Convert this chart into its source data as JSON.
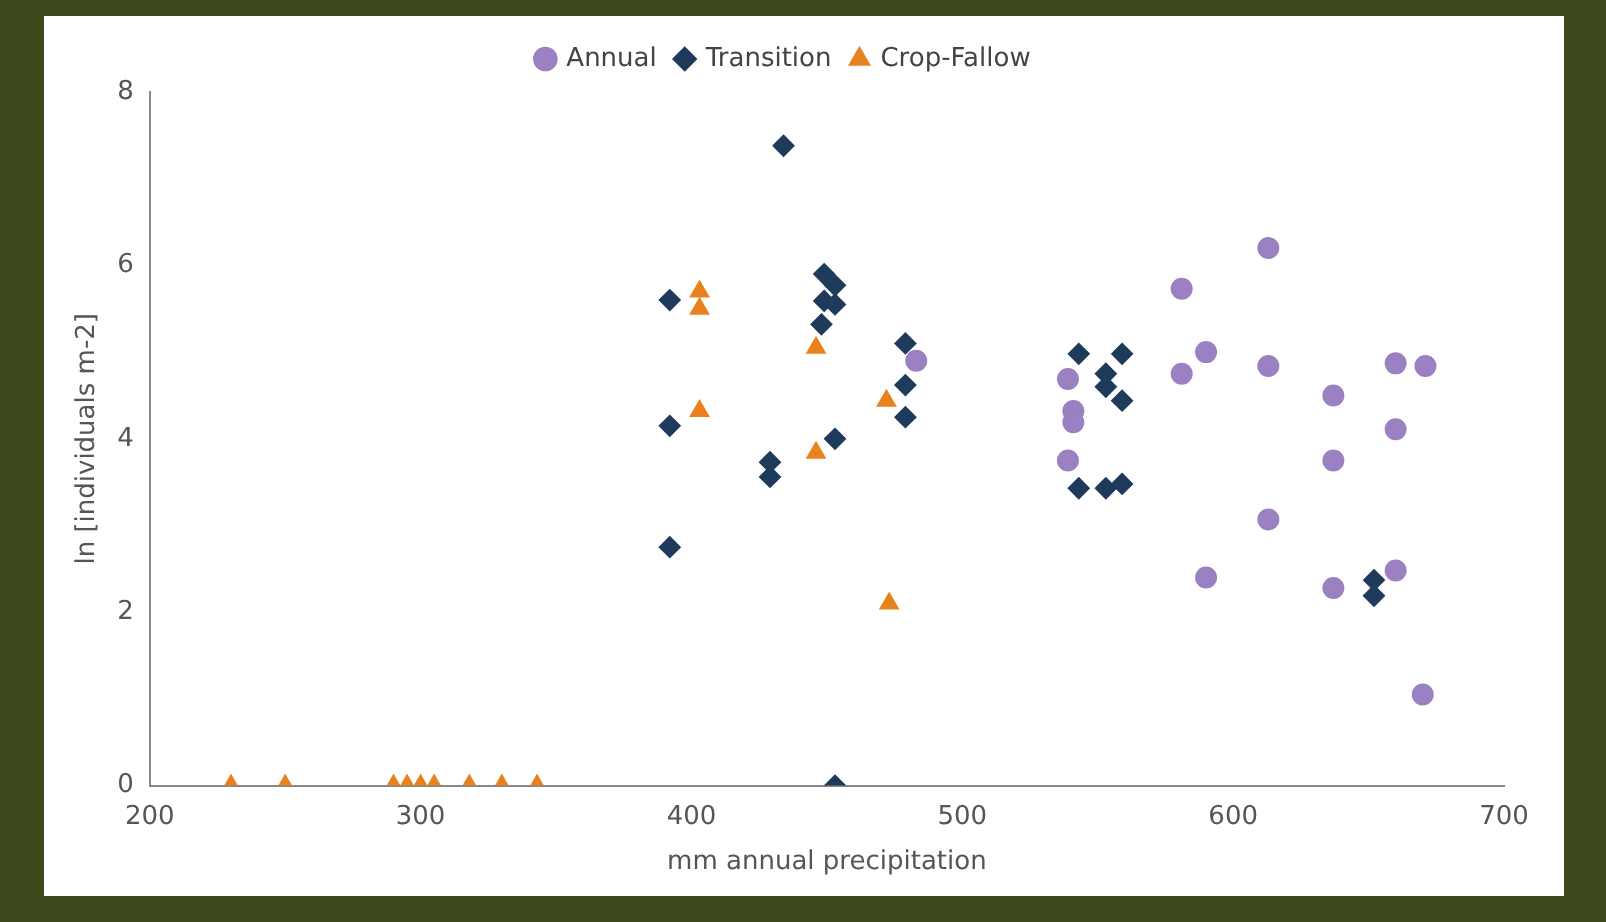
{
  "chart_data": {
    "type": "scatter",
    "xlabel": "mm annual precipitation",
    "ylabel": "ln [individuals m-2]",
    "xlim": [
      200,
      700
    ],
    "xticks": [
      200,
      300,
      400,
      500,
      600,
      700
    ],
    "ylim": [
      0,
      8
    ],
    "yticks": [
      0,
      2,
      4,
      6,
      8
    ],
    "grid": false,
    "legend": "top",
    "series": [
      {
        "name": "Annual",
        "color": "#9b80c2",
        "marker": "circle",
        "x": [
          483,
          613,
          581,
          590,
          581,
          613,
          660,
          671,
          637,
          660,
          637,
          613,
          590,
          637,
          660,
          670,
          539,
          541,
          541,
          539
        ],
        "values": [
          4.9,
          6.2,
          5.73,
          5.0,
          4.75,
          4.84,
          4.87,
          4.84,
          4.5,
          4.11,
          3.75,
          3.07,
          2.4,
          2.28,
          2.48,
          1.05,
          4.69,
          4.32,
          4.19,
          3.75
        ]
      },
      {
        "name": "Transition",
        "color": "#1f3b5c",
        "marker": "diamond",
        "x": [
          392,
          392,
          392,
          434,
          449,
          453,
          449,
          453,
          448,
          479,
          479,
          479,
          453,
          429,
          429,
          453,
          543,
          559,
          553,
          553,
          559,
          543,
          553,
          559,
          652,
          652
        ],
        "values": [
          5.6,
          4.15,
          2.75,
          7.38,
          5.9,
          5.77,
          5.59,
          5.55,
          5.32,
          5.1,
          4.62,
          4.25,
          4.0,
          3.73,
          3.56,
          0,
          4.98,
          4.98,
          4.75,
          4.6,
          4.44,
          3.43,
          3.43,
          3.48,
          2.37,
          2.19
        ]
      },
      {
        "name": "Crop-Fallow",
        "color": "#e8821e",
        "marker": "triangle",
        "x": [
          403,
          403,
          403,
          446,
          472,
          446,
          473,
          230,
          250,
          290,
          295,
          300,
          305,
          318,
          330,
          343
        ],
        "values": [
          5.7,
          5.5,
          4.32,
          5.05,
          4.44,
          3.84,
          2.1,
          0,
          0,
          0,
          0,
          0,
          0,
          0,
          0,
          0
        ]
      }
    ]
  }
}
